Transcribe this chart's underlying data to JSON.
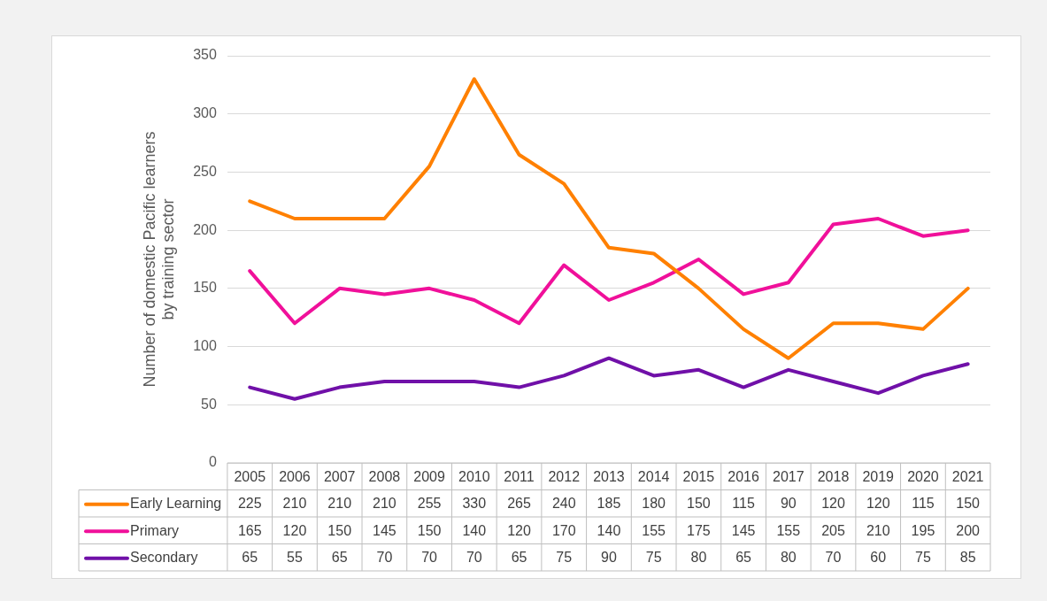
{
  "chart_data": {
    "type": "line",
    "ylabel": "Number of domestic Pacific learners\nby training sector",
    "categories": [
      "2005",
      "2006",
      "2007",
      "2008",
      "2009",
      "2010",
      "2011",
      "2012",
      "2013",
      "2014",
      "2015",
      "2016",
      "2017",
      "2018",
      "2019",
      "2020",
      "2021"
    ],
    "series": [
      {
        "name": "Early Learning",
        "color": "#ff8000",
        "values": [
          225,
          210,
          210,
          210,
          255,
          330,
          265,
          240,
          185,
          180,
          150,
          115,
          90,
          120,
          120,
          115,
          150
        ]
      },
      {
        "name": "Primary",
        "color": "#f0109a",
        "values": [
          165,
          120,
          150,
          145,
          150,
          140,
          120,
          170,
          140,
          155,
          175,
          145,
          155,
          205,
          210,
          195,
          200
        ]
      },
      {
        "name": "Secondary",
        "color": "#7010a8",
        "values": [
          65,
          55,
          65,
          70,
          70,
          70,
          65,
          75,
          90,
          75,
          80,
          65,
          80,
          70,
          60,
          75,
          85
        ]
      }
    ],
    "ylim": [
      0,
      350
    ],
    "yticks": [
      0,
      50,
      100,
      150,
      200,
      250,
      300,
      350
    ],
    "grid": "y",
    "legend": "bottom",
    "data_labels": true,
    "marker": "none",
    "line_style": "solid"
  }
}
